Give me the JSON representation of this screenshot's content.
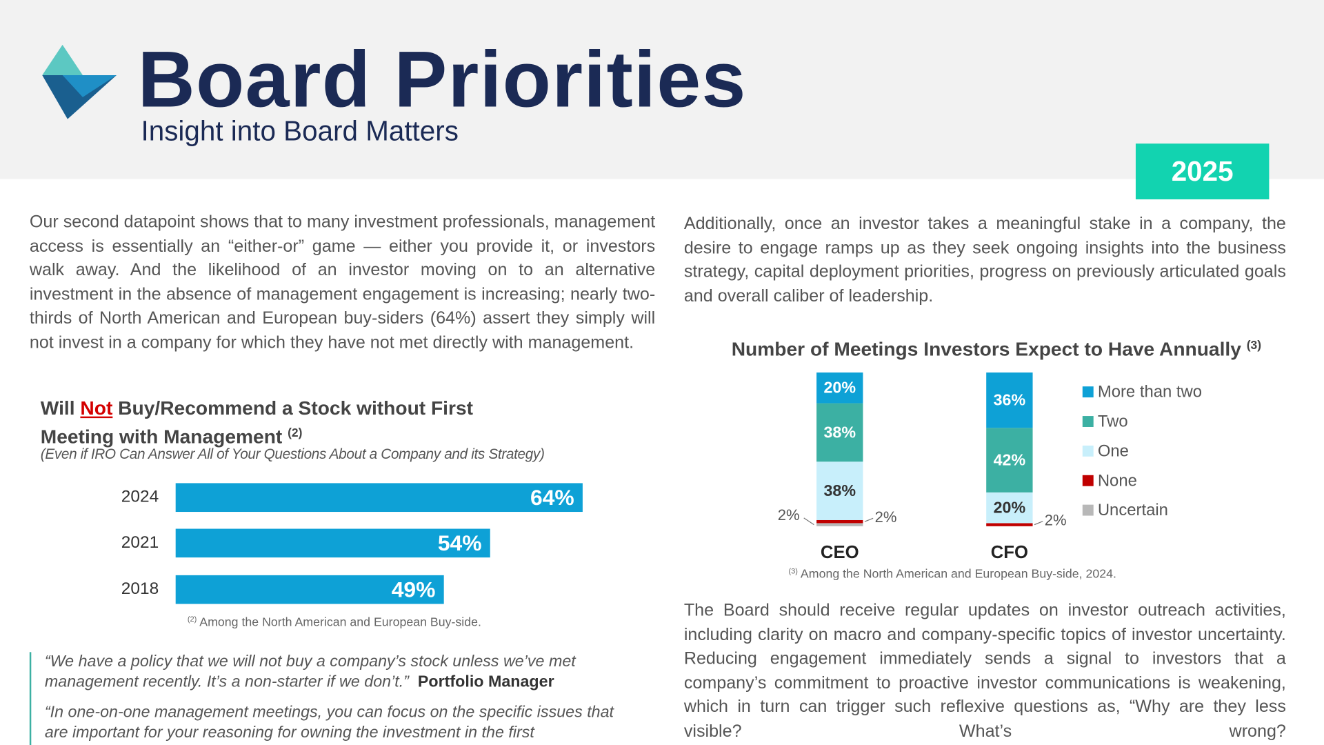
{
  "header": {
    "title": "Board Priorities",
    "subtitle": "Insight into Board Matters",
    "year": "2025"
  },
  "left_column": {
    "paragraph": "Our second datapoint shows that to many investment professionals, management access is essentially an “either-or” game — either you provide it, or investors walk away. And the likelihood of an investor moving on to an alternative investment in the absence of management engagement is increasing; nearly two-thirds of North American and European buy-siders (64%) assert they simply will not invest in a company for which they have not met directly with management.",
    "quotes": [
      {
        "text": "“We have a policy that we will not buy a company’s stock unless we’ve met management recently. It’s a non-starter if we don’t.”",
        "source": "Portfolio Manager"
      },
      {
        "text": "“In one-on-one management meetings, you can focus on the specific issues that are important for your reasoning for owning the investment in the first"
      }
    ]
  },
  "right_column": {
    "paragraphs": [
      "Additionally, once an investor takes a meaningful stake in a company, the desire to engage ramps up as they seek ongoing insights into the business strategy, capital deployment priorities, progress on previously articulated goals and overall caliber of leadership.",
      "The Board should receive regular updates on investor outreach activities, including clarity on macro and company-specific topics of investor uncertainty. Reducing engagement immediately sends a signal to investors that a company’s commitment to proactive investor communications is weakening, which in turn can trigger such reflexive questions as, “Why are they less visible? What’s wrong?"
    ]
  },
  "chart_data": [
    {
      "type": "hbar",
      "title": [
        "Will",
        "Not",
        "Buy/Recommend a Stock without First Meeting with Management"
      ],
      "title_note": "(2)",
      "subtitle": "(Even if IRO Can Answer All of Your Questions About a Company and its Strategy)",
      "categories": [
        "2024",
        "2021",
        "2018"
      ],
      "values": [
        64,
        54,
        49
      ],
      "value_labels": [
        "64%",
        "54%",
        "49%"
      ],
      "color": "#0ea1d6",
      "xlim": [
        20,
        64
      ],
      "footnote_mark": "(2)",
      "footnote": "Among the North American and European Buy-side."
    },
    {
      "type": "stacked_bar",
      "title": "Number of Meetings Investors Expect to Have Annually",
      "title_note": "(3)",
      "categories": [
        "CEO",
        "CFO"
      ],
      "series": [
        {
          "name": "More than two",
          "color": "#0ea1d6",
          "values": [
            20,
            36
          ],
          "value_labels": [
            "20%",
            "36%"
          ]
        },
        {
          "name": "Two",
          "color": "#3cb0a3",
          "values": [
            38,
            42
          ],
          "value_labels": [
            "38%",
            "42%"
          ]
        },
        {
          "name": "One",
          "color": "#c8effb",
          "values": [
            38,
            20
          ],
          "value_labels": [
            "38%",
            "20%"
          ]
        },
        {
          "name": "None",
          "color": "#c00000",
          "values": [
            2,
            2
          ],
          "value_labels": [
            "2%",
            "2%"
          ]
        },
        {
          "name": "Uncertain",
          "color": "#b8b8b8",
          "values": [
            2,
            null
          ],
          "value_labels": [
            "2%",
            null
          ]
        }
      ],
      "ylim": [
        0,
        100
      ],
      "footnote_mark": "(3)",
      "footnote": "Among the North American and European Buy-side, 2024."
    }
  ]
}
